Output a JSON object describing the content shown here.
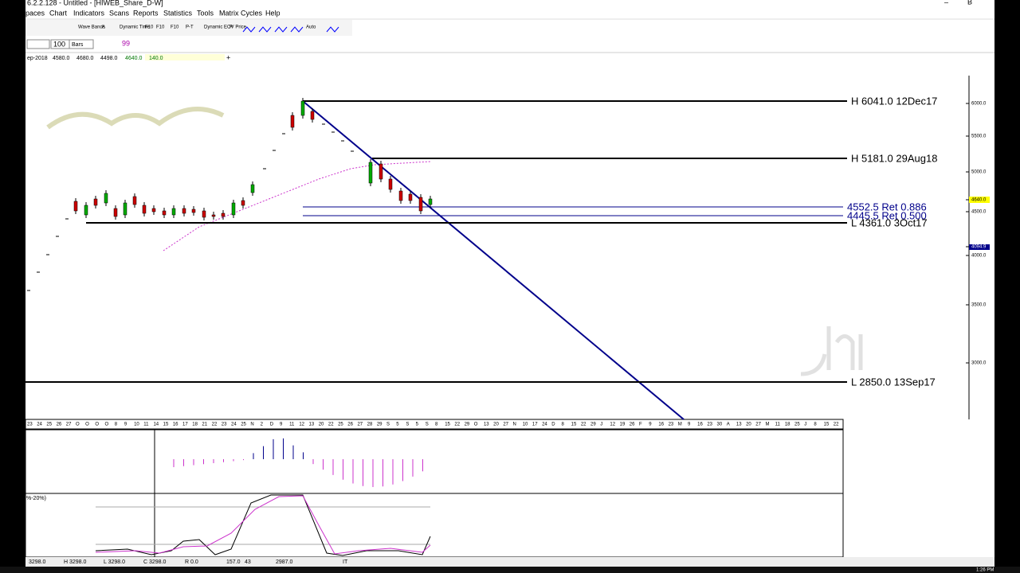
{
  "window": {
    "title": "6.2.2.128 - Untitled - [HIWEB_Share_D-W]"
  },
  "menu": [
    "paces",
    "Chart",
    "Indicators",
    "Scans",
    "Reports",
    "Statistics",
    "Tools",
    "Matrix Cycles",
    "Help"
  ],
  "toolbar": [
    "Wave Bands",
    "A",
    "Dynamic Time",
    "F10",
    "F10",
    "F10",
    "P-T",
    "Dynamic EOV Price",
    "P",
    "Auto"
  ],
  "controls": {
    "count": "100",
    "mode": "Bars"
  },
  "info": [
    "ep-2018",
    "4580.0",
    "4680.0",
    "4498.0",
    "4640.0",
    "140.0"
  ],
  "levels": [
    {
      "label": "H 6041.0 12Dec17"
    },
    {
      "label": "H 5181.0 29Aug18"
    },
    {
      "label": "4552.5 Ret 0.886"
    },
    {
      "label": "4445.5 Ret 0.500"
    },
    {
      "label": "L 4361.0 3Oct17"
    },
    {
      "label": "L 2850.0 13Sep17"
    }
  ],
  "price_axis": [
    "6000.0",
    "5500.0",
    "5000.0",
    "4640.0",
    "4500.0",
    "4094.9",
    "4000.0",
    "3500.0",
    "3000.0"
  ],
  "dates": [
    "23",
    "24",
    "25",
    "26",
    "27",
    "O",
    "O",
    "O",
    "O",
    "8",
    "9",
    "10",
    "11",
    "14",
    "15",
    "16",
    "17",
    "18",
    "21",
    "22",
    "23",
    "24",
    "25",
    "N",
    "2",
    "D",
    "9",
    "11",
    "12",
    "13",
    "20",
    "22",
    "25",
    "26",
    "27",
    "28",
    "29",
    "S",
    "5",
    "S",
    "5",
    "S",
    "8",
    "15",
    "22",
    "29",
    "O",
    "13",
    "20",
    "27",
    "N",
    "10",
    "17",
    "24",
    "D",
    "8",
    "15",
    "22",
    "29",
    "J",
    "12",
    "19",
    "26",
    "F",
    "9",
    "16",
    "23",
    "M",
    "9",
    "16",
    "23",
    "30",
    "A",
    "13",
    "20",
    "27",
    "M",
    "11",
    "18",
    "25",
    "J",
    "8",
    "15",
    "22"
  ],
  "oscillator_label": "%-20%)",
  "status": [
    "3298.0",
    "H 3298.0",
    "L 3298.0",
    "C 3298.0",
    "R 0.0",
    "157.0",
    "43",
    "2987.0",
    "IT"
  ],
  "clock": "1:26 PM"
}
